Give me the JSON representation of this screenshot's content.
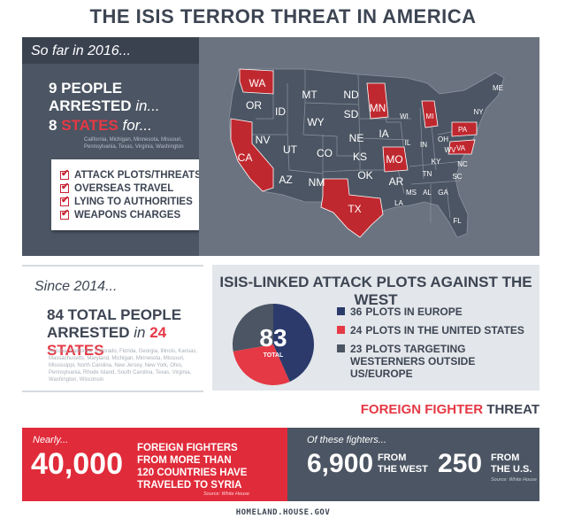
{
  "title": "THE ISIS TERROR THREAT IN AMERICA",
  "section1": {
    "header": "So far in 2016...",
    "people_num": "9 PEOPLE ARRESTED",
    "people_suffix": "in...",
    "states_num": "8",
    "states_word": "STATES",
    "states_suffix": "for...",
    "states_list": "California, Michigan, Minnesota, Missouri, Pennsylvania, Texas, Virginia, Washington",
    "charges": [
      "ATTACK PLOTS/THREATS",
      "OVERSEAS TRAVEL",
      "LYING TO AUTHORITIES",
      "WEAPONS CHARGES"
    ],
    "map": {
      "highlight_color": "#c0282f",
      "base_color": "#4b5563",
      "labels": [
        "WA",
        "OR",
        "ID",
        "MT",
        "ND",
        "SD",
        "WY",
        "NV",
        "CA",
        "UT",
        "CO",
        "NE",
        "KS",
        "AZ",
        "NM",
        "OK",
        "TX",
        "MN",
        "IA",
        "MO",
        "AR",
        "LA",
        "WI",
        "IL",
        "MI",
        "IN",
        "OH",
        "KY",
        "TN",
        "MS",
        "AL",
        "GA",
        "FL",
        "SC",
        "NC",
        "VA",
        "WV",
        "PA",
        "NY",
        "ME"
      ]
    }
  },
  "section2": {
    "header": "Since 2014...",
    "total_line1": "84 TOTAL PEOPLE",
    "total_line2": "ARRESTED",
    "total_in": "in",
    "total_states": "24 STATES",
    "states_list": "Arizona, California, Colorado, Florida, Georgia, Illinois, Kansas, Massachusetts, Maryland, Michigan, Minnesota, Missouri, Mississippi, North Carolina, New Jersey, New York, Ohio, Pennsylvania, Rhode Island, South Carolina, Texas, Virginia, Washington, Wisconsin",
    "plots_title": "ISIS-LINKED ATTACK PLOTS AGAINST THE WEST",
    "total_value": "83",
    "total_label": "TOTAL",
    "colors": {
      "europe": "#2b3a6b",
      "us": "#e53945",
      "other": "#4b5563"
    },
    "legend": [
      {
        "num": "36",
        "label": "PLOTS IN EUROPE"
      },
      {
        "num": "24",
        "label": "PLOTS IN THE UNITED STATES"
      },
      {
        "num": "23",
        "label": "PLOTS TARGETING WESTERNERS OUTSIDE US/EUROPE"
      }
    ]
  },
  "chart_data": {
    "type": "pie",
    "title": "ISIS-LINKED ATTACK PLOTS AGAINST THE WEST",
    "categories": [
      "PLOTS IN EUROPE",
      "PLOTS IN THE UNITED STATES",
      "PLOTS TARGETING WESTERNERS OUTSIDE US/EUROPE"
    ],
    "values": [
      36,
      24,
      23
    ],
    "total": 83
  },
  "section3": {
    "title_red": "FOREIGN FIGHTER",
    "title_dark": "THREAT",
    "nearly": "Nearly...",
    "big_number": "40,000",
    "desc_l1": "FOREIGN FIGHTERS",
    "desc_l2": "FROM MORE THAN",
    "desc_l3": "120 COUNTRIES HAVE",
    "desc_l4": "TRAVELED TO SYRIA",
    "source1": "Source: White House",
    "of_these": "Of these fighters...",
    "west_number": "6,900",
    "from_l1": "FROM",
    "west_l2": "THE WEST",
    "us_number": "250",
    "us_l2": "THE U.S.",
    "source2": "Source: White House"
  },
  "footer": "HOMELAND.HOUSE.GOV"
}
